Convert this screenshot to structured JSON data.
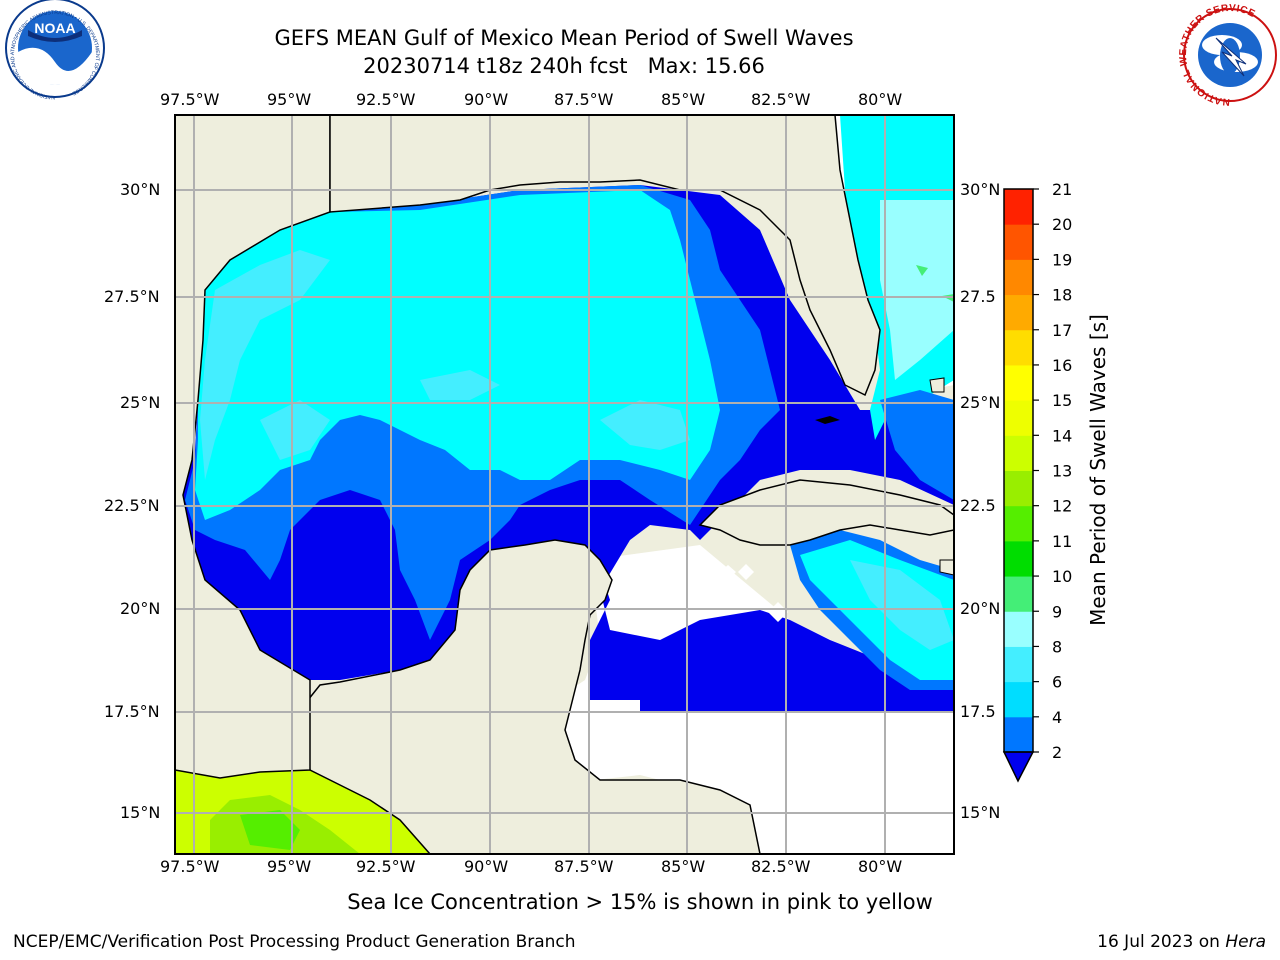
{
  "title": {
    "line1": "GEFS MEAN Gulf of Mexico Mean Period of Swell Waves",
    "line2": "20230714 t18z 240h fcst   Max: 15.66"
  },
  "logos": {
    "noaa": {
      "text": "NOAA",
      "ring_text": "NATIONAL OCEANIC AND ATMOSPHERIC ADMINISTRATION • U.S. DEPARTMENT OF COMMERCE"
    },
    "nws": {
      "ring_text": "NATIONAL WEATHER SERVICE"
    }
  },
  "map": {
    "lon_labels": [
      "97.5°W",
      "95°W",
      "92.5°W",
      "90°W",
      "87.5°W",
      "85°W",
      "82.5°W",
      "80°W"
    ],
    "lat_labels_left": [
      "30°N",
      "27.5°N",
      "25°N",
      "22.5°N",
      "20°N",
      "17.5°N",
      "15°N"
    ],
    "lat_labels_right": [
      "30°N",
      "27.5",
      "25°N",
      "22.5",
      "20°N",
      "17.5",
      "15°N"
    ],
    "extent": {
      "lon_min": -98.0,
      "lon_max": -78.25,
      "lat_min": 14.0,
      "lat_max": 31.8
    },
    "colors": {
      "land": "#eeeedd",
      "grid": "#b0b0b0",
      "missing": "#ffffff"
    }
  },
  "colorbar": {
    "label": "Mean Period of Swell Waves [s]",
    "ticks": [
      "2",
      "4",
      "6",
      "8",
      "9",
      "10",
      "11",
      "12",
      "13",
      "14",
      "15",
      "16",
      "17",
      "18",
      "19",
      "20",
      "21"
    ],
    "colors": [
      "#0077ff",
      "#00ddff",
      "#44eeff",
      "#99ffff",
      "#44ee77",
      "#00dd00",
      "#55ee00",
      "#99ee00",
      "#ccff00",
      "#eeff00",
      "#ffff00",
      "#ffdd00",
      "#ffaa00",
      "#ff8800",
      "#ff5500",
      "#ff2200"
    ],
    "extend_below_color": "#0000ee"
  },
  "ice_note": "Sea Ice Concentration > 15% is shown in pink to yellow",
  "footer": {
    "left": "NCEP/EMC/Verification Post Processing Product Generation Branch",
    "right_prefix": "16 Jul 2023 on ",
    "right_host": "Hera"
  }
}
